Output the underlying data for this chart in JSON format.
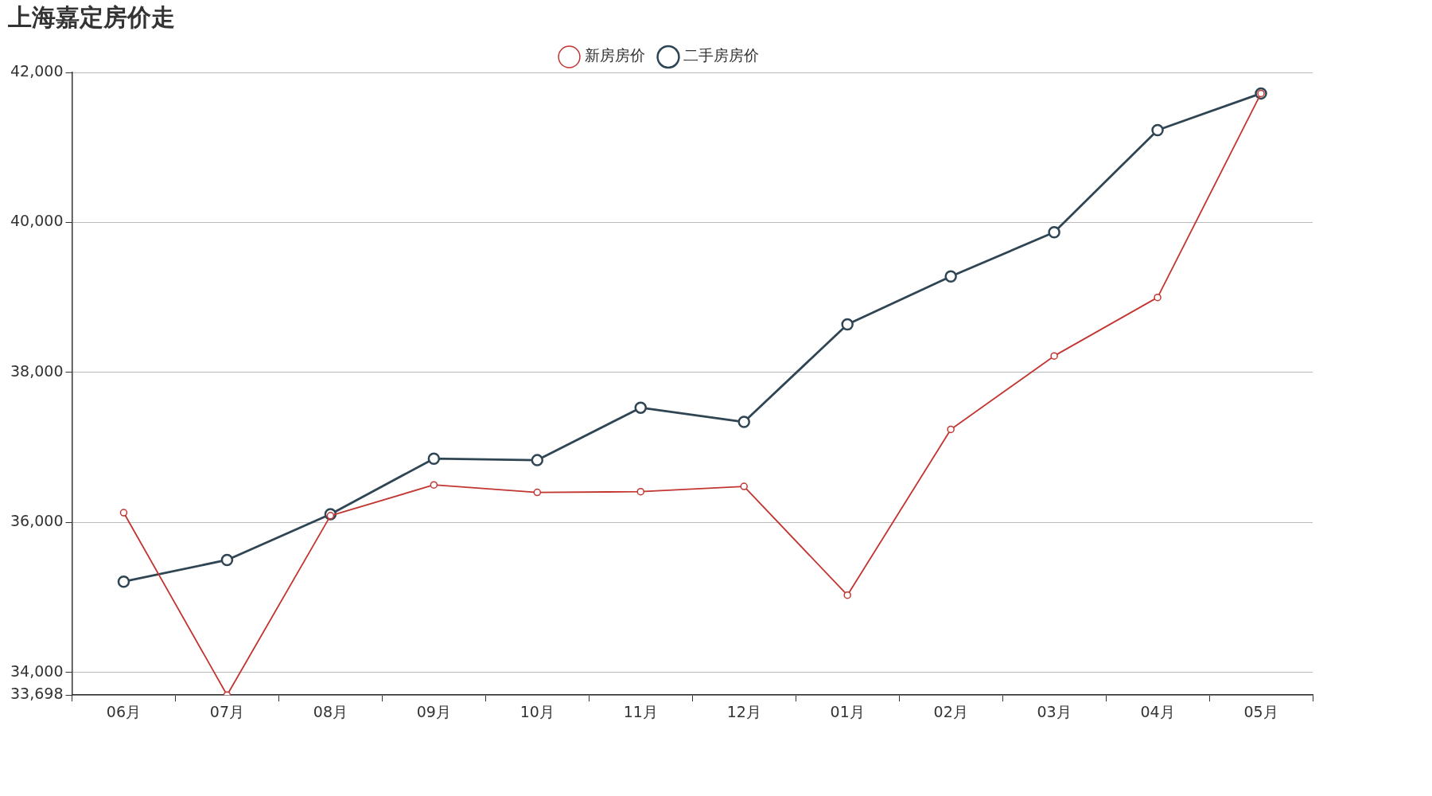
{
  "chart_data": {
    "type": "line",
    "title": "上海嘉定房价走",
    "categories": [
      "06月",
      "07月",
      "08月",
      "09月",
      "10月",
      "11月",
      "12月",
      "01月",
      "02月",
      "03月",
      "04月",
      "05月"
    ],
    "series": [
      {
        "name": "新房房价",
        "color": "#c23531",
        "values": [
          36130,
          33698,
          36090,
          36500,
          36400,
          36410,
          36480,
          35030,
          37240,
          38220,
          39000,
          41720
        ]
      },
      {
        "name": "二手房房价",
        "color": "#2f4554",
        "values": [
          35210,
          35500,
          36110,
          36850,
          36830,
          37530,
          37340,
          38640,
          39280,
          39870,
          41230,
          41720
        ]
      }
    ],
    "ylim": [
      33698,
      42000
    ],
    "yticks": [
      {
        "value": 33698,
        "label": "33,698"
      },
      {
        "value": 34000,
        "label": "34,000"
      },
      {
        "value": 36000,
        "label": "36,000"
      },
      {
        "value": 38000,
        "label": "38,000"
      },
      {
        "value": 40000,
        "label": "40,000"
      },
      {
        "value": 42000,
        "label": "42,000"
      }
    ],
    "grid": "y",
    "legend": "top",
    "marker": "circle",
    "line_style": "solid"
  }
}
